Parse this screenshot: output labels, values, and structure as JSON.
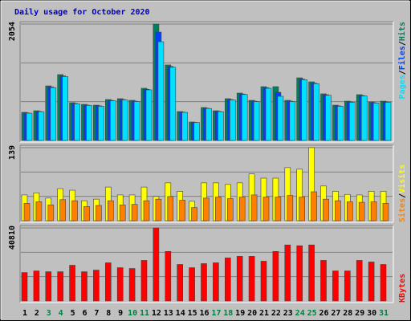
{
  "chart_data": [
    {
      "type": "bar",
      "title": "Daily usage for October 2020",
      "ylim": [
        0,
        2054
      ],
      "yticks": [
        2054
      ],
      "legend_separator": "/",
      "series": [
        {
          "name": "Hits",
          "color": "#00805c",
          "values": [
            496,
            524,
            963,
            1162,
            666,
            637,
            623,
            722,
            737,
            708,
            921,
            2054,
            1332,
            510,
            326,
            581,
            524,
            737,
            836,
            708,
            949,
            949,
            708,
            1105,
            1034,
            822,
            623,
            694,
            808,
            680,
            694
          ]
        },
        {
          "name": "Files",
          "color": "#0040ff",
          "values": [
            486,
            514,
            944,
            1139,
            653,
            624,
            611,
            708,
            722,
            694,
            903,
            1912,
            1305,
            500,
            319,
            569,
            514,
            722,
            819,
            694,
            930,
            850,
            694,
            1083,
            1013,
            806,
            611,
            680,
            792,
            666,
            680
          ]
        },
        {
          "name": "Pages",
          "color": "#00e0ff",
          "values": [
            481,
            508,
            934,
            1127,
            646,
            618,
            604,
            700,
            715,
            687,
            893,
            1742,
            1292,
            495,
            316,
            564,
            508,
            715,
            811,
            687,
            921,
            779,
            687,
            1072,
            1003,
            797,
            604,
            673,
            784,
            660,
            673
          ]
        }
      ]
    },
    {
      "type": "bar",
      "ylim": [
        0,
        139
      ],
      "yticks": [
        139
      ],
      "legend_separator": "/",
      "series": [
        {
          "name": "Visits",
          "color": "#ffff00",
          "values": [
            49,
            53,
            43,
            61,
            58,
            38,
            41,
            64,
            49,
            49,
            64,
            46,
            72,
            56,
            37,
            72,
            72,
            69,
            72,
            89,
            81,
            81,
            101,
            98,
            139,
            66,
            56,
            50,
            49,
            56,
            56
          ]
        },
        {
          "name": "Sites",
          "color": "#ff8000",
          "values": [
            33,
            36,
            30,
            40,
            38,
            27,
            29,
            38,
            30,
            31,
            38,
            41,
            46,
            39,
            25,
            43,
            45,
            42,
            45,
            49,
            45,
            45,
            48,
            45,
            55,
            41,
            38,
            36,
            35,
            36,
            33
          ]
        }
      ]
    },
    {
      "type": "bar",
      "ylim": [
        0,
        40810
      ],
      "yticks": [
        40810
      ],
      "categories": [
        "1",
        "2",
        "3",
        "4",
        "5",
        "6",
        "7",
        "8",
        "9",
        "10",
        "11",
        "12",
        "13",
        "14",
        "15",
        "16",
        "17",
        "18",
        "19",
        "20",
        "21",
        "22",
        "23",
        "24",
        "25",
        "26",
        "27",
        "28",
        "29",
        "30",
        "31"
      ],
      "category_colors": [
        "#000000",
        "#000000",
        "#008040",
        "#008040",
        "#000000",
        "#000000",
        "#000000",
        "#000000",
        "#000000",
        "#008040",
        "#008040",
        "#000000",
        "#000000",
        "#000000",
        "#000000",
        "#000000",
        "#008040",
        "#008040",
        "#000000",
        "#000000",
        "#000000",
        "#000000",
        "#000000",
        "#008040",
        "#008040",
        "#000000",
        "#000000",
        "#000000",
        "#000000",
        "#000000",
        "#008040"
      ],
      "series": [
        {
          "name": "KBytes",
          "color": "#ff0000",
          "values": [
            15870,
            16777,
            16324,
            16324,
            19951,
            16324,
            17230,
            21311,
            18590,
            18137,
            22671,
            40810,
            27660,
            20404,
            18590,
            20857,
            21311,
            24032,
            24939,
            24939,
            22218,
            27660,
            31287,
            30834,
            31287,
            22671,
            16777,
            16777,
            22671,
            21764,
            20404
          ]
        }
      ]
    }
  ]
}
